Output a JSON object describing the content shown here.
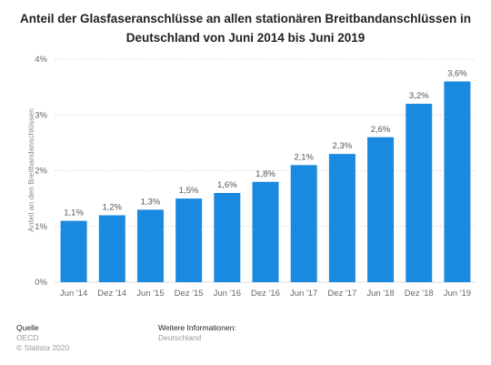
{
  "title_line1": "Anteil der Glasfaseranschlüsse an allen stationären Breitbandanschlüssen in",
  "title_line2": "Deutschland von Juni 2014 bis Juni 2019",
  "footer": {
    "source_heading": "Quelle",
    "source": "OECD",
    "copyright": "© Statista 2020",
    "info_heading": "Weitere Informationen:",
    "info": "Deutschland"
  },
  "chart_data": {
    "type": "bar",
    "title": "Anteil der Glasfaseranschlüsse an allen stationären Breitbandanschlüssen in Deutschland von Juni 2014 bis Juni 2019",
    "categories": [
      "Jun '14",
      "Dez '14",
      "Jun '15",
      "Dez '15",
      "Jun '16",
      "Dez '16",
      "Jun '17",
      "Dez '17",
      "Jun '18",
      "Dez '18",
      "Jun '19"
    ],
    "values": [
      1.1,
      1.2,
      1.3,
      1.5,
      1.6,
      1.8,
      2.1,
      2.3,
      2.6,
      3.2,
      3.6
    ],
    "value_labels": [
      "1,1%",
      "1,2%",
      "1,3%",
      "1,5%",
      "1,6%",
      "1,8%",
      "2,1%",
      "2,3%",
      "2,6%",
      "3,2%",
      "3,6%"
    ],
    "ylabel": "Anteil an den Breitbandanschlüssen",
    "xlabel": "",
    "ylim": [
      0,
      4
    ],
    "yticks": [
      0,
      1,
      2,
      3,
      4
    ],
    "ytick_labels": [
      "0%",
      "1%",
      "2%",
      "3%",
      "4%"
    ],
    "grid": true,
    "bar_color": "#1a8ae0",
    "grid_color": "#dcdcdc"
  }
}
